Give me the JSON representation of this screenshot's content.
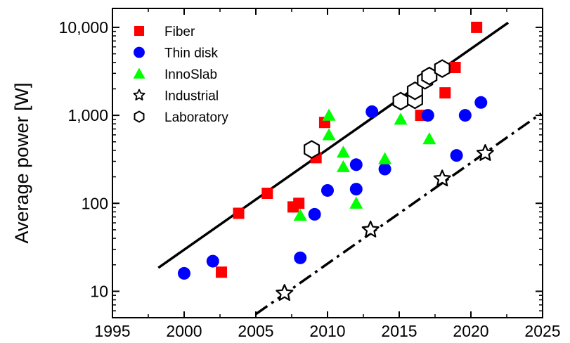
{
  "chart_data": {
    "type": "scatter",
    "xlabel": "",
    "ylabel": "Average power  [W]",
    "xlim": [
      1995,
      2025
    ],
    "ylim_log10": [
      0.7,
      4.215
    ],
    "y_scale": "log",
    "x_ticks": [
      1995,
      2000,
      2005,
      2010,
      2015,
      2020,
      2025
    ],
    "x_tick_labels": [
      "1995",
      "2000",
      "2005",
      "2010",
      "2015",
      "2020",
      "2025"
    ],
    "y_ticks": [
      10,
      100,
      1000,
      10000
    ],
    "y_tick_labels": [
      "10",
      "100",
      "1,000",
      "10,000"
    ],
    "legend_position": "top-left",
    "series": [
      {
        "name": "Fiber",
        "marker": "square",
        "color": "#ff0000",
        "points": [
          [
            2002.6,
            16.5
          ],
          [
            2003.8,
            77
          ],
          [
            2005.8,
            130
          ],
          [
            2007.6,
            91
          ],
          [
            2008,
            100
          ],
          [
            2009.2,
            330
          ],
          [
            2009.8,
            830
          ],
          [
            2016.5,
            1000
          ],
          [
            2018.2,
            1800
          ],
          [
            2018.9,
            3500
          ],
          [
            2020.4,
            10000
          ]
        ]
      },
      {
        "name": "Thin disk",
        "marker": "circle",
        "color": "#0000ff",
        "points": [
          [
            2000,
            16
          ],
          [
            2002,
            22
          ],
          [
            2008.1,
            24
          ],
          [
            2009.1,
            75
          ],
          [
            2010,
            140
          ],
          [
            2012,
            145
          ],
          [
            2012,
            275
          ],
          [
            2013.1,
            1100
          ],
          [
            2014,
            245
          ],
          [
            2017,
            1000
          ],
          [
            2019,
            350
          ],
          [
            2019.6,
            1000
          ],
          [
            2020.7,
            1400
          ]
        ]
      },
      {
        "name": "InnoSlab",
        "marker": "triangle",
        "color": "#00ff00",
        "points": [
          [
            2008.1,
            73
          ],
          [
            2010.1,
            1000
          ],
          [
            2010.1,
            600
          ],
          [
            2011.1,
            380
          ],
          [
            2011.1,
            260
          ],
          [
            2012,
            100
          ],
          [
            2014,
            320
          ],
          [
            2015.1,
            900
          ],
          [
            2017.1,
            540
          ]
        ]
      },
      {
        "name": "Industrial",
        "marker": "star",
        "color": "#000000",
        "points": [
          [
            2007,
            9.5
          ],
          [
            2013,
            50
          ],
          [
            2018,
            190
          ],
          [
            2021,
            370
          ]
        ]
      },
      {
        "name": "Laboratory",
        "marker": "hexagon",
        "color": "#000000",
        "points": [
          [
            2008.9,
            410
          ],
          [
            2015.1,
            1450
          ],
          [
            2016.1,
            1500
          ],
          [
            2016.1,
            1900
          ],
          [
            2016.8,
            2500
          ],
          [
            2017.1,
            2800
          ],
          [
            2018,
            3400
          ]
        ]
      }
    ],
    "trend_lines": [
      {
        "style": "solid",
        "from": [
          1998.2,
          18.5
        ],
        "to": [
          2022.6,
          11300
        ]
      },
      {
        "style": "dash-dot",
        "from": [
          2005,
          5.5
        ],
        "to": [
          2024.9,
          1050
        ]
      }
    ]
  }
}
